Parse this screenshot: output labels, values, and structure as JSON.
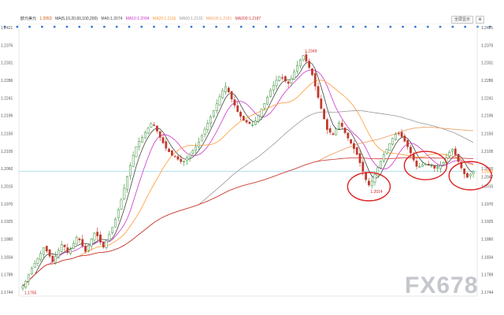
{
  "legend": {
    "symbol": "欧元美元",
    "price": "1.2053",
    "ma_header": "MA(5,10,20,60,100,200)",
    "items": [
      {
        "text": "MA5:1.2074",
        "color": "#444444"
      },
      {
        "text": "MA10:1.2094",
        "color": "#cc33cc"
      },
      {
        "text": "MA20:1.2116",
        "color": "#ff9933"
      },
      {
        "text": "MA60:1.2132",
        "color": "#999999"
      },
      {
        "text": "MA100:1.2181",
        "color": "#f0a060"
      },
      {
        "text": "MA200:1.2187",
        "color": "#cc3333"
      }
    ]
  },
  "toolbar": {
    "btn1": "全屏显示",
    "btn2": "Ⅲ"
  },
  "watermark": "FX678",
  "colors": {
    "up": "#2e8b2e",
    "down": "#c0392b",
    "circle": "#dd2222",
    "hline": "#9fd6e8"
  },
  "chart_data": {
    "type": "line",
    "subtype": "candlestick",
    "symbol": "EUR/USD",
    "yticks_left": [
      "1.2421",
      "1.2376",
      "1.2331",
      "1.2286",
      "1.2241",
      "1.2196",
      "1.2150",
      "1.2105",
      "1.2060",
      "1.2015",
      "1.1970",
      "1.1925",
      "1.1880",
      "1.1834",
      "1.1789",
      "1.1744"
    ],
    "yticks_right": [
      "1.2421",
      "1.2376",
      "1.2331",
      "1.2286",
      "1.2241",
      "1.2196",
      "1.2150",
      "1.2105",
      "1.2060",
      "1.2015",
      "1.1970",
      "1.1925",
      "1.1880",
      "1.1834",
      "1.1789",
      "1.1744"
    ],
    "ylim": [
      1.1744,
      1.2421
    ],
    "current_price": "1.2053",
    "current_label_right": "1.2047",
    "annotations": [
      {
        "label": "1.2349",
        "type": "high"
      },
      {
        "label": "1.2014",
        "type": "low"
      },
      {
        "label": "1.1755",
        "type": "low"
      }
    ],
    "circled_indices": [
      116,
      135,
      150
    ],
    "close": [
      1.176,
      1.1772,
      1.179,
      1.1805,
      1.1818,
      1.183,
      1.1843,
      1.1858,
      1.1849,
      1.1836,
      1.1822,
      1.1836,
      1.1851,
      1.1866,
      1.186,
      1.1845,
      1.1853,
      1.1869,
      1.1884,
      1.1878,
      1.1862,
      1.1848,
      1.1864,
      1.188,
      1.1895,
      1.1888,
      1.1872,
      1.1859,
      1.1875,
      1.1892,
      1.191,
      1.1931,
      1.1955,
      1.198,
      1.201,
      1.204,
      1.2068,
      1.2094,
      1.2116,
      1.213,
      1.214,
      1.2152,
      1.2164,
      1.2176,
      1.217,
      1.2156,
      1.214,
      1.2126,
      1.2112,
      1.2103,
      1.2094,
      1.209,
      1.2084,
      1.2078,
      1.2079,
      1.2088,
      1.2096,
      1.2106,
      1.2116,
      1.2128,
      1.2144,
      1.2161,
      1.2176,
      1.2192,
      1.2209,
      1.2226,
      1.2244,
      1.226,
      1.227,
      1.2256,
      1.2238,
      1.2222,
      1.2206,
      1.2194,
      1.2184,
      1.2179,
      1.2175,
      1.2172,
      1.2182,
      1.2196,
      1.2212,
      1.2227,
      1.2243,
      1.226,
      1.2273,
      1.2286,
      1.2296,
      1.2292,
      1.2284,
      1.2278,
      1.229,
      1.2308,
      1.2324,
      1.2338,
      1.2349,
      1.2335,
      1.2319,
      1.23,
      1.2271,
      1.2242,
      1.2214,
      1.2187,
      1.216,
      1.2153,
      1.2147,
      1.2162,
      1.2176,
      1.2168,
      1.2152,
      1.2138,
      1.2125,
      1.2111,
      1.2096,
      1.2075,
      1.2053,
      1.2032,
      1.2018,
      1.2028,
      1.2045,
      1.2063,
      1.208,
      1.2096,
      1.211,
      1.2124,
      1.2138,
      1.2148,
      1.215,
      1.2142,
      1.213,
      1.2116,
      1.21,
      1.2082,
      1.2066,
      1.2066,
      1.207,
      1.2072,
      1.2071,
      1.2068,
      1.2061,
      1.2063,
      1.2068,
      1.2076,
      1.2088,
      1.2102,
      1.211,
      1.2096,
      1.2078,
      1.2062,
      1.2047,
      1.2038,
      1.2046,
      1.2052
    ]
  }
}
